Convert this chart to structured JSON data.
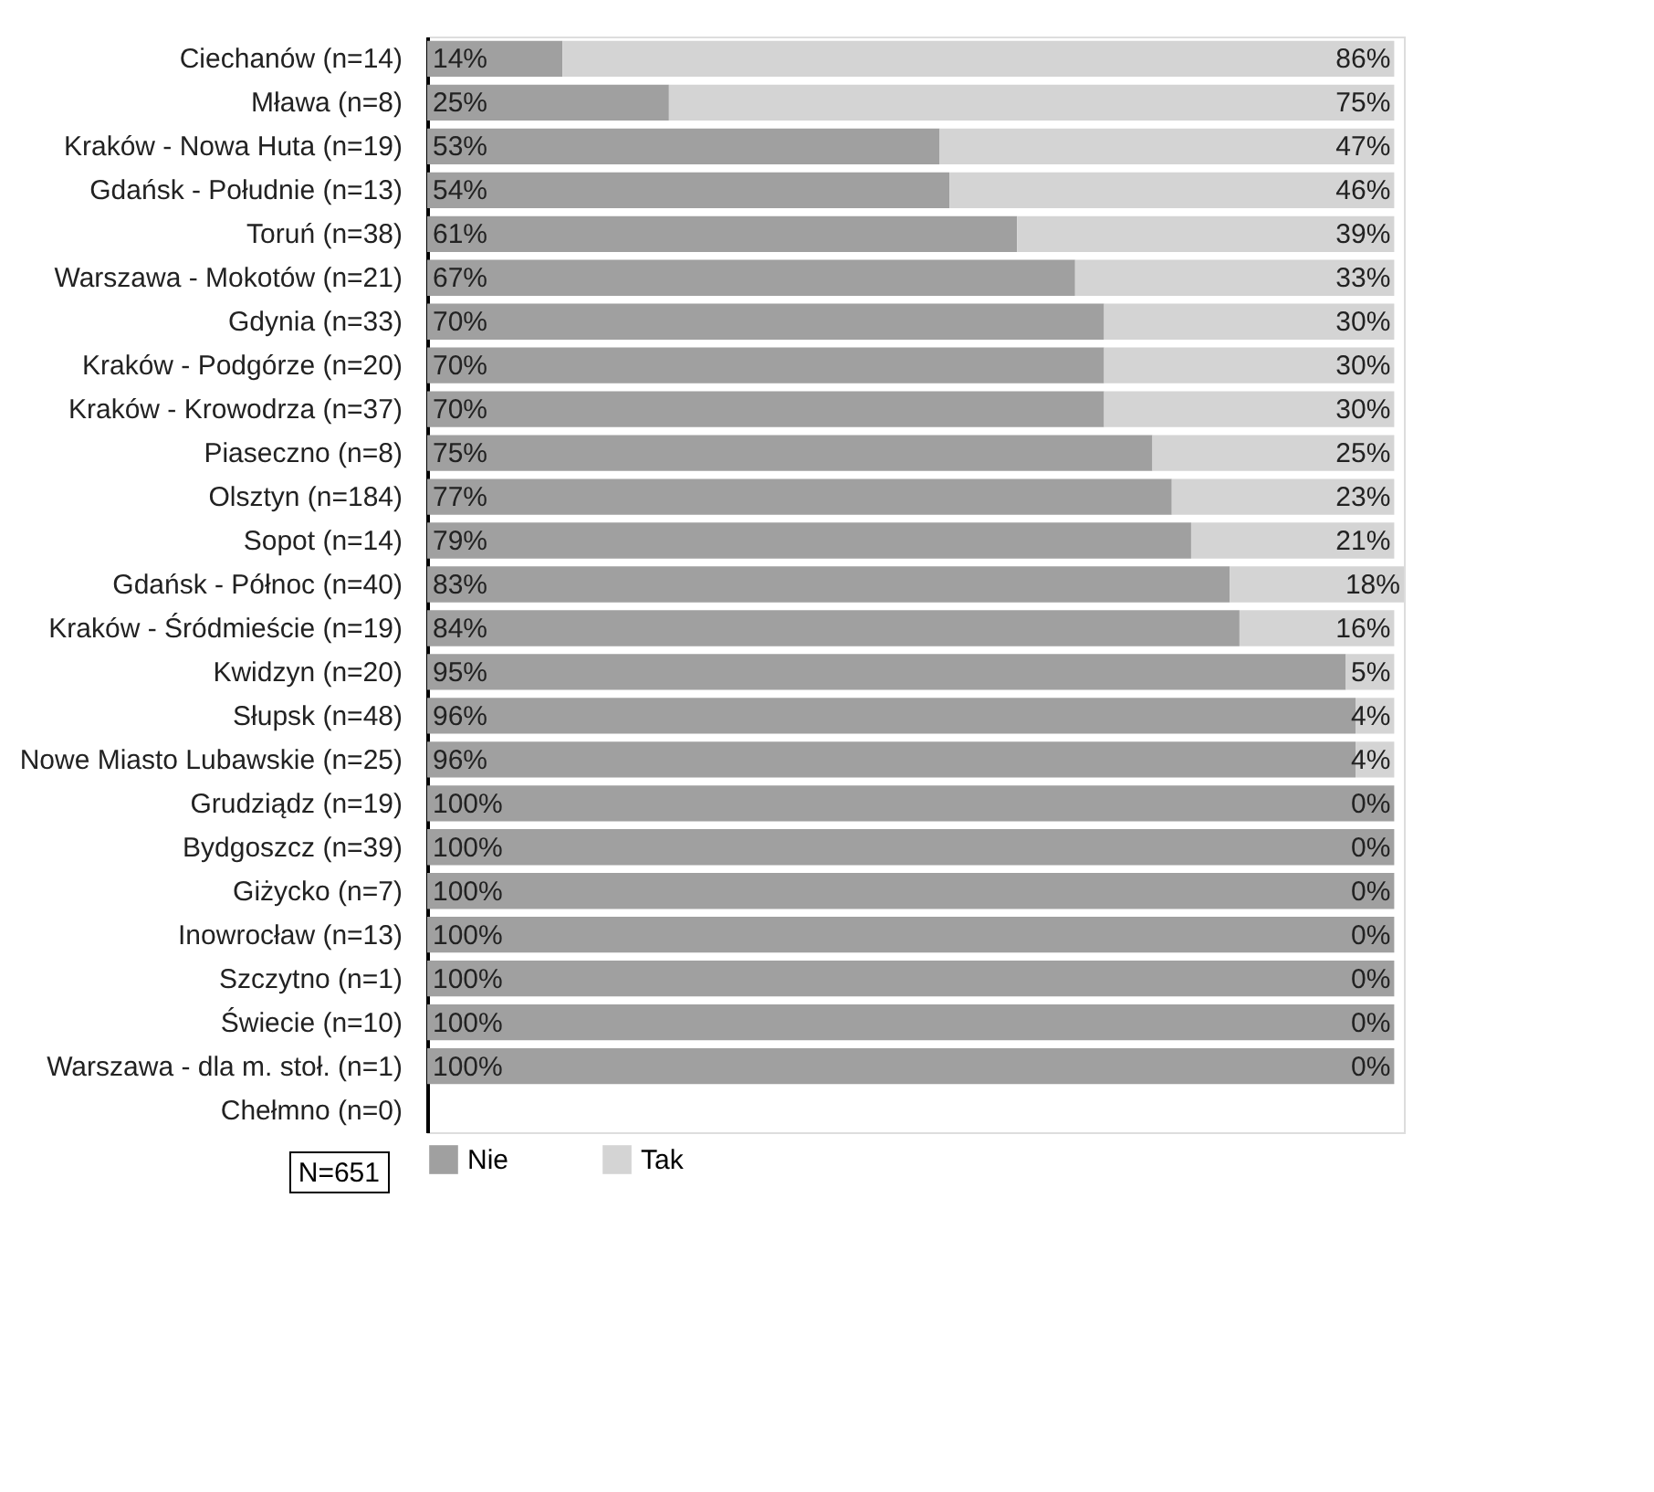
{
  "chart_data": {
    "type": "bar",
    "orientation": "horizontal",
    "stacked": true,
    "categories": [
      "Ciechanów (n=14)",
      "Mława (n=8)",
      "Kraków - Nowa Huta (n=19)",
      "Gdańsk - Południe (n=13)",
      "Toruń (n=38)",
      "Warszawa - Mokotów (n=21)",
      "Gdynia (n=33)",
      "Kraków - Podgórze (n=20)",
      "Kraków - Krowodrza (n=37)",
      "Piaseczno (n=8)",
      "Olsztyn (n=184)",
      "Sopot (n=14)",
      "Gdańsk - Północ (n=40)",
      "Kraków - Śródmieście (n=19)",
      "Kwidzyn (n=20)",
      "Słupsk (n=48)",
      "Nowe Miasto Lubawskie (n=25)",
      "Grudziądz (n=19)",
      "Bydgoszcz (n=39)",
      "Giżycko (n=7)",
      "Inowrocław (n=13)",
      "Szczytno (n=1)",
      "Świecie (n=10)",
      "Warszawa - dla m. stoł. (n=1)",
      "Chełmno (n=0)"
    ],
    "series": [
      {
        "name": "Nie",
        "color": "#a0a0a0",
        "values": [
          14,
          25,
          53,
          54,
          61,
          67,
          70,
          70,
          70,
          75,
          77,
          79,
          83,
          84,
          95,
          96,
          96,
          100,
          100,
          100,
          100,
          100,
          100,
          100,
          null
        ],
        "value_labels": [
          "14%",
          "25%",
          "53%",
          "54%",
          "61%",
          "67%",
          "70%",
          "70%",
          "70%",
          "75%",
          "77%",
          "79%",
          "83%",
          "84%",
          "95%",
          "96%",
          "96%",
          "100%",
          "100%",
          "100%",
          "100%",
          "100%",
          "100%",
          "100%",
          null
        ]
      },
      {
        "name": "Tak",
        "color": "#d4d4d4",
        "values": [
          86,
          75,
          47,
          46,
          39,
          33,
          30,
          30,
          30,
          25,
          23,
          21,
          18,
          16,
          5,
          4,
          4,
          0,
          0,
          0,
          0,
          0,
          0,
          0,
          null
        ],
        "value_labels": [
          "86%",
          "75%",
          "47%",
          "46%",
          "39%",
          "33%",
          "30%",
          "30%",
          "30%",
          "25%",
          "23%",
          "21%",
          "18%",
          "16%",
          "5%",
          "4%",
          "4%",
          "0%",
          "0%",
          "0%",
          "0%",
          "0%",
          "0%",
          "0%",
          null
        ]
      }
    ],
    "xlim": [
      0,
      101
    ],
    "tick_labels": "y",
    "grid": false,
    "legend": "bottom",
    "annotations": [
      "N=651"
    ]
  }
}
